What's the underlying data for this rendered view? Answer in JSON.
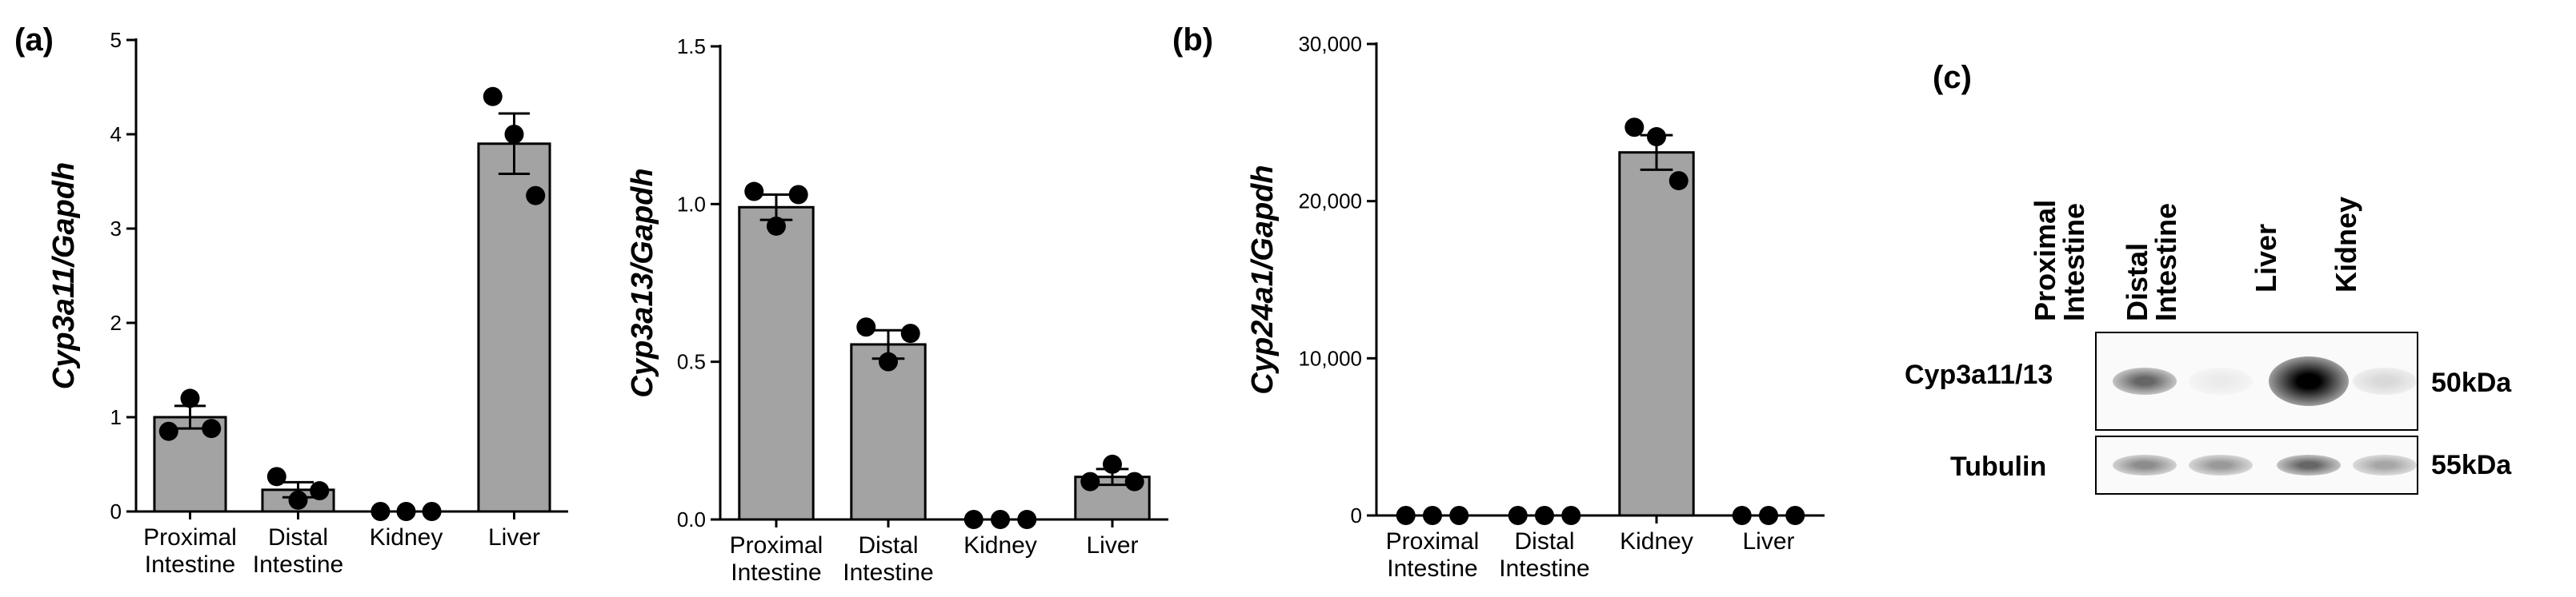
{
  "panels": {
    "a": "(a)",
    "b": "(b)",
    "c": "(c)"
  },
  "colors": {
    "bar_fill": "#a3a3a3",
    "bar_stroke": "#000000",
    "dot": "#000000"
  },
  "chart_data": [
    {
      "id": "cyp3a11",
      "type": "bar",
      "title": "",
      "ylabel": "Cyp3a11/Gapdh",
      "categories": [
        "Proximal\nIntestine",
        "Distal\nIntestine",
        "Kidney",
        "Liver"
      ],
      "values": [
        1.0,
        0.23,
        0.0,
        3.9
      ],
      "errors": [
        0.12,
        0.08,
        0.0,
        0.32
      ],
      "points": [
        [
          0.85,
          1.2,
          0.88
        ],
        [
          0.37,
          0.12,
          0.22
        ],
        [
          0.0,
          0.0,
          0.0
        ],
        [
          4.4,
          4.0,
          3.35
        ]
      ],
      "ylim": [
        0,
        5
      ],
      "yticks": [
        0,
        1,
        2,
        3,
        4,
        5
      ],
      "ytick_labels": [
        "0",
        "1",
        "2",
        "3",
        "4",
        "5"
      ]
    },
    {
      "id": "cyp3a13",
      "type": "bar",
      "title": "",
      "ylabel": "Cyp3a13/Gapdh",
      "categories": [
        "Proximal\nIntestine",
        "Distal\nIntestine",
        "Kidney",
        "Liver"
      ],
      "values": [
        0.99,
        0.555,
        0.0,
        0.135
      ],
      "errors": [
        0.04,
        0.045,
        0.0,
        0.025
      ],
      "points": [
        [
          1.04,
          0.93,
          1.03
        ],
        [
          0.61,
          0.5,
          0.59
        ],
        [
          0.0,
          0.0,
          0.0
        ],
        [
          0.12,
          0.175,
          0.12
        ]
      ],
      "ylim": [
        0,
        1.5
      ],
      "yticks": [
        0,
        0.5,
        1.0,
        1.5
      ],
      "ytick_labels": [
        "0.0",
        "0.5",
        "1.0",
        "1.5"
      ]
    },
    {
      "id": "cyp24a1",
      "type": "bar",
      "title": "",
      "ylabel": "Cyp24a1/Gapdh",
      "categories": [
        "Proximal\nIntestine",
        "Distal\nIntestine",
        "Kidney",
        "Liver"
      ],
      "values": [
        0,
        0,
        23100,
        0
      ],
      "errors": [
        0,
        0,
        1100,
        0
      ],
      "points": [
        [
          0,
          0,
          0
        ],
        [
          0,
          0,
          0
        ],
        [
          24700,
          24100,
          21300
        ],
        [
          0,
          0,
          0
        ]
      ],
      "ylim": [
        0,
        30000
      ],
      "yticks": [
        0,
        10000,
        20000,
        30000
      ],
      "ytick_labels": [
        "0",
        "10,000",
        "20,000",
        "30,000"
      ]
    }
  ],
  "blot": {
    "lanes": [
      "Proximal\nIntestine",
      "Distal\nIntestine",
      "Liver",
      "Kidney"
    ],
    "rows": [
      {
        "label": "Cyp3a11/13",
        "mw": "50kDa",
        "intensity": [
          0.6,
          0.08,
          1.0,
          0.15
        ]
      },
      {
        "label": "Tubulin",
        "mw": "55kDa",
        "intensity": [
          0.45,
          0.4,
          0.6,
          0.35
        ]
      }
    ]
  }
}
